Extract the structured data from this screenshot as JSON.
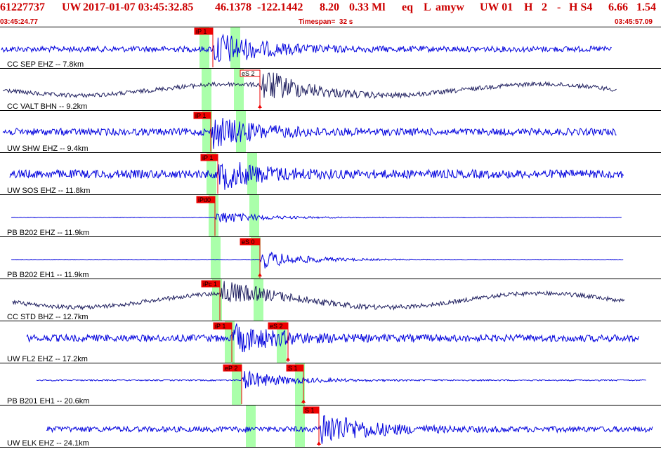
{
  "header": {
    "event_id": "61227737",
    "network": "UW",
    "datetime": "2017-01-07 03:45:32.85",
    "lat": "46.1378",
    "lon": "-122.1442",
    "depth": "8.20",
    "magnitude": "0.33 Ml",
    "etype": "eq",
    "gtype": "L",
    "author": "amyw",
    "source": "UW 01",
    "quality": "H",
    "count": "2",
    "flag": "-",
    "review": "H S4",
    "val1": "6.66",
    "val2": "1.54",
    "start_time": "03:45:24.77",
    "timespan": "Timespan=  32 s",
    "end_time": "03:45:57.09"
  },
  "colors": {
    "header_text": "#cc0000",
    "trace_vertical": "#0000dd",
    "trace_horizontal": "#202060",
    "pick_flag": "#ee0000",
    "theoretical_band": "#aaffaa",
    "separator": "#000000"
  },
  "panels": [
    {
      "label": "CC SEP EHZ -- 7.8km",
      "trace_color": "#0000dd",
      "amp": 4,
      "spike_amp": 26,
      "picks": [
        {
          "text": "iP 1",
          "kind": "P"
        }
      ]
    },
    {
      "label": "CC VALT BHN -- 9.2km",
      "trace_color": "#202060",
      "amp": 3,
      "spike_amp": 24,
      "picks": [
        {
          "text": "eS 2",
          "kind": "S",
          "style": "outline"
        }
      ]
    },
    {
      "label": "UW SHW EHZ -- 9.4km",
      "trace_color": "#0000dd",
      "amp": 5,
      "spike_amp": 22,
      "picks": [
        {
          "text": "iP 1",
          "kind": "P"
        }
      ]
    },
    {
      "label": "UW SOS EHZ -- 11.8km",
      "trace_color": "#0000dd",
      "amp": 6,
      "spike_amp": 20,
      "picks": [
        {
          "text": "iP 1",
          "kind": "P"
        }
      ]
    },
    {
      "label": "PB B202 EHZ -- 11.9km",
      "trace_color": "#0000dd",
      "amp": 0.4,
      "spike_amp": 10,
      "picks": [
        {
          "text": "iPd0",
          "kind": "P"
        }
      ]
    },
    {
      "label": "PB B202 EH1 -- 11.9km",
      "trace_color": "#0000dd",
      "amp": 0.4,
      "spike_amp": 14,
      "picks": [
        {
          "text": "eS 0",
          "kind": "S"
        }
      ]
    },
    {
      "label": "CC STD BHZ -- 12.7km",
      "trace_color": "#202060",
      "amp": 3,
      "spike_amp": 18,
      "picks": [
        {
          "text": "iPc 1",
          "kind": "P"
        }
      ]
    },
    {
      "label": "UW FL2 EHZ -- 17.2km",
      "trace_color": "#0000dd",
      "amp": 5,
      "spike_amp": 20,
      "picks": [
        {
          "text": "iP 1",
          "kind": "P"
        },
        {
          "text": "eS 2",
          "kind": "S"
        }
      ]
    },
    {
      "label": "PB B201 EH1 -- 20.6km",
      "trace_color": "#0000dd",
      "amp": 1,
      "spike_amp": 14,
      "picks": [
        {
          "text": "eP 2",
          "kind": "P"
        },
        {
          "text": "S 1",
          "kind": "S"
        }
      ]
    },
    {
      "label": "UW ELK EHZ -- 24.1km",
      "trace_color": "#0000dd",
      "amp": 4,
      "spike_amp": 26,
      "picks": [
        {
          "text": "S 1",
          "kind": "S"
        }
      ]
    }
  ]
}
